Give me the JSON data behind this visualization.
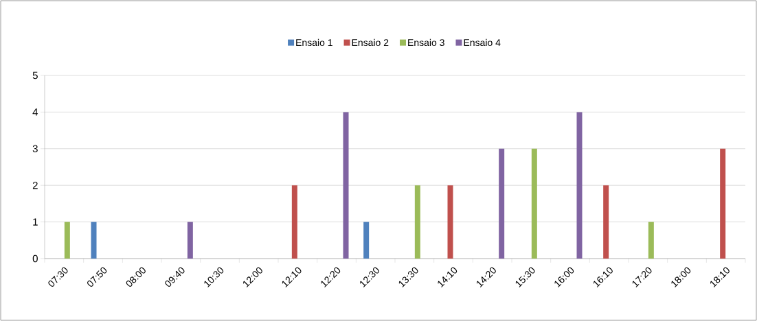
{
  "chart_data": {
    "type": "bar",
    "categories": [
      "07:30",
      "07:50",
      "08:00",
      "09:40",
      "10:30",
      "12:00",
      "12:10",
      "12:20",
      "12:30",
      "13:30",
      "14:10",
      "14:20",
      "15:30",
      "16:00",
      "16:10",
      "17:20",
      "18:00",
      "18:10"
    ],
    "series": [
      {
        "name": "Ensaio 1",
        "color": "#4f81bd",
        "values": [
          null,
          1,
          null,
          null,
          null,
          null,
          null,
          null,
          1,
          null,
          null,
          null,
          null,
          null,
          null,
          null,
          null,
          null
        ]
      },
      {
        "name": "Ensaio 2",
        "color": "#c0504d",
        "values": [
          null,
          null,
          null,
          null,
          null,
          null,
          2,
          null,
          null,
          null,
          2,
          null,
          null,
          null,
          2,
          null,
          null,
          3
        ]
      },
      {
        "name": "Ensaio 3",
        "color": "#9bbb59",
        "values": [
          1,
          null,
          null,
          null,
          null,
          null,
          null,
          null,
          null,
          2,
          null,
          null,
          3,
          null,
          null,
          1,
          null,
          null
        ]
      },
      {
        "name": "Ensaio 4",
        "color": "#8064a2",
        "values": [
          null,
          null,
          null,
          1,
          null,
          null,
          null,
          4,
          null,
          null,
          null,
          3,
          null,
          4,
          null,
          null,
          null,
          null
        ]
      }
    ],
    "ylim": [
      0,
      5
    ],
    "yticks": [
      0,
      1,
      2,
      3,
      4,
      5
    ],
    "grid": "y",
    "legend": "top"
  }
}
